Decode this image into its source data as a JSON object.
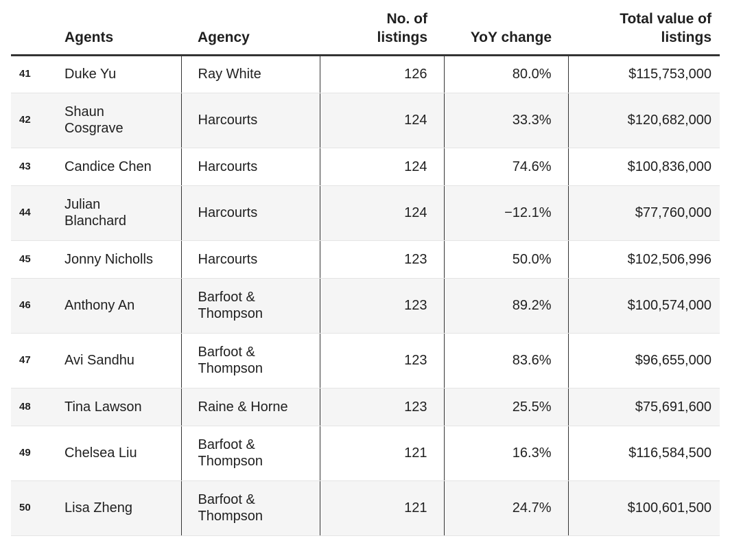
{
  "chart_data": {
    "type": "table",
    "columns": [
      "",
      "Agents",
      "Agency",
      "No. of listings",
      "YoY change",
      "Total value of listings"
    ],
    "header_lines": {
      "listings": [
        "No. of",
        "listings"
      ],
      "total": [
        "Total value of",
        "listings"
      ]
    },
    "rows": [
      {
        "rank": "41",
        "agent": [
          "Duke Yu"
        ],
        "agency": [
          "Ray White"
        ],
        "listings": 126,
        "listings_text": "126",
        "yoy": 80.0,
        "yoy_text": "80.0%",
        "total": 115753000,
        "total_text": "$115,753,000"
      },
      {
        "rank": "42",
        "agent": [
          "Shaun",
          "Cosgrave"
        ],
        "agency": [
          "Harcourts"
        ],
        "listings": 124,
        "listings_text": "124",
        "yoy": 33.3,
        "yoy_text": "33.3%",
        "total": 120682000,
        "total_text": "$120,682,000"
      },
      {
        "rank": "43",
        "agent": [
          "Candice Chen"
        ],
        "agency": [
          "Harcourts"
        ],
        "listings": 124,
        "listings_text": "124",
        "yoy": 74.6,
        "yoy_text": "74.6%",
        "total": 100836000,
        "total_text": "$100,836,000"
      },
      {
        "rank": "44",
        "agent": [
          "Julian",
          "Blanchard"
        ],
        "agency": [
          "Harcourts"
        ],
        "listings": 124,
        "listings_text": "124",
        "yoy": -12.1,
        "yoy_text": "−12.1%",
        "total": 77760000,
        "total_text": "$77,760,000"
      },
      {
        "rank": "45",
        "agent": [
          "Jonny Nicholls"
        ],
        "agency": [
          "Harcourts"
        ],
        "listings": 123,
        "listings_text": "123",
        "yoy": 50.0,
        "yoy_text": "50.0%",
        "total": 102506996,
        "total_text": "$102,506,996"
      },
      {
        "rank": "46",
        "agent": [
          "Anthony An"
        ],
        "agency": [
          "Barfoot &",
          "Thompson"
        ],
        "listings": 123,
        "listings_text": "123",
        "yoy": 89.2,
        "yoy_text": "89.2%",
        "total": 100574000,
        "total_text": "$100,574,000"
      },
      {
        "rank": "47",
        "agent": [
          "Avi Sandhu"
        ],
        "agency": [
          "Barfoot &",
          "Thompson"
        ],
        "listings": 123,
        "listings_text": "123",
        "yoy": 83.6,
        "yoy_text": "83.6%",
        "total": 96655000,
        "total_text": "$96,655,000"
      },
      {
        "rank": "48",
        "agent": [
          "Tina Lawson"
        ],
        "agency": [
          "Raine & Horne"
        ],
        "listings": 123,
        "listings_text": "123",
        "yoy": 25.5,
        "yoy_text": "25.5%",
        "total": 75691600,
        "total_text": "$75,691,600"
      },
      {
        "rank": "49",
        "agent": [
          "Chelsea Liu"
        ],
        "agency": [
          "Barfoot &",
          "Thompson"
        ],
        "listings": 121,
        "listings_text": "121",
        "yoy": 16.3,
        "yoy_text": "16.3%",
        "total": 116584500,
        "total_text": "$116,584,500"
      },
      {
        "rank": "50",
        "agent": [
          "Lisa Zheng"
        ],
        "agency": [
          "Barfoot &",
          "Thompson"
        ],
        "listings": 121,
        "listings_text": "121",
        "yoy": 24.7,
        "yoy_text": "24.7%",
        "total": 100601500,
        "total_text": "$100,601,500"
      }
    ]
  }
}
